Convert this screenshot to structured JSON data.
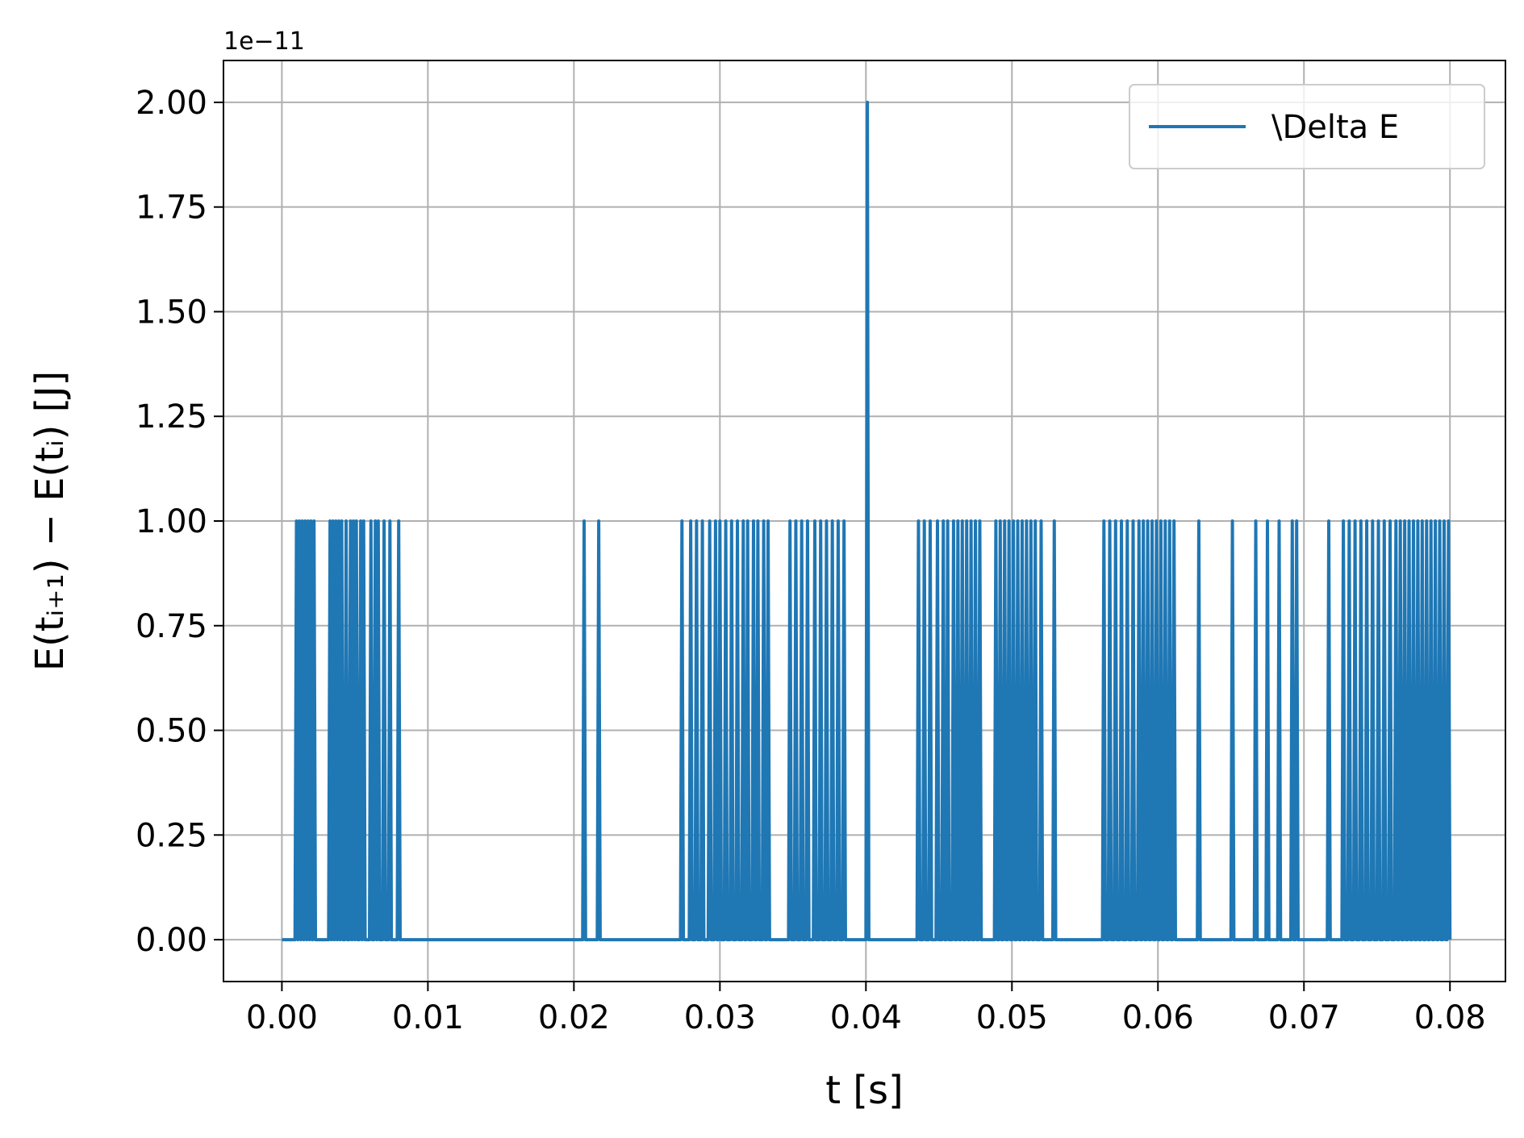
{
  "chart_data": {
    "type": "line",
    "xlabel": "t [s]",
    "ylabel": "E(tᵢ₊₁) − E(tᵢ) [J]",
    "y_offset_label": "1e−11",
    "y_scale": 1e-11,
    "xlim": [
      -0.004,
      0.0838
    ],
    "ylim": [
      -0.1,
      2.1
    ],
    "x_ticks": [
      0.0,
      0.01,
      0.02,
      0.03,
      0.04,
      0.05,
      0.06,
      0.07,
      0.08
    ],
    "x_tick_labels": [
      "0.00",
      "0.01",
      "0.02",
      "0.03",
      "0.04",
      "0.05",
      "0.06",
      "0.07",
      "0.08"
    ],
    "y_ticks": [
      0.0,
      0.25,
      0.5,
      0.75,
      1.0,
      1.25,
      1.5,
      1.75,
      2.0
    ],
    "y_tick_labels": [
      "0.00",
      "0.25",
      "0.50",
      "0.75",
      "1.00",
      "1.25",
      "1.50",
      "1.75",
      "2.00"
    ],
    "grid": true,
    "legend_position": "top-right",
    "series": [
      {
        "name": "\\Delta E",
        "color": "#1f77b4",
        "step": 0.0001,
        "x_range": [
          0.0,
          0.08
        ],
        "spike_times": [
          0.001,
          0.0012,
          0.0014,
          0.0016,
          0.0018,
          0.002,
          0.0022,
          0.0033,
          0.0035,
          0.0037,
          0.0039,
          0.0041,
          0.0044,
          0.0047,
          0.0049,
          0.0051,
          0.0054,
          0.0056,
          0.0061,
          0.0064,
          0.0066,
          0.007,
          0.0074,
          0.008,
          0.0207,
          0.0217,
          0.0274,
          0.028,
          0.0284,
          0.0288,
          0.0293,
          0.0297,
          0.03,
          0.0304,
          0.0308,
          0.0312,
          0.0316,
          0.0319,
          0.0323,
          0.0326,
          0.033,
          0.0333,
          0.0348,
          0.0352,
          0.0356,
          0.036,
          0.0365,
          0.0369,
          0.0373,
          0.0377,
          0.0381,
          0.0385,
          0.0436,
          0.044,
          0.0444,
          0.0449,
          0.0453,
          0.0456,
          0.046,
          0.0463,
          0.0466,
          0.0469,
          0.0472,
          0.0475,
          0.0478,
          0.0489,
          0.0492,
          0.0495,
          0.0498,
          0.0501,
          0.0504,
          0.0507,
          0.051,
          0.0513,
          0.0516,
          0.052,
          0.0529,
          0.0563,
          0.0567,
          0.0571,
          0.0575,
          0.0579,
          0.0583,
          0.0587,
          0.059,
          0.0593,
          0.0596,
          0.0599,
          0.0602,
          0.0605,
          0.0608,
          0.0611,
          0.0628,
          0.0651,
          0.0667,
          0.0675,
          0.0683,
          0.0692,
          0.0695,
          0.0717,
          0.0727,
          0.0731,
          0.0735,
          0.0739,
          0.0743,
          0.0747,
          0.0751,
          0.0755,
          0.0759,
          0.0763,
          0.0766,
          0.0769,
          0.0772,
          0.0775,
          0.0778,
          0.0781,
          0.0784,
          0.0787,
          0.079,
          0.0793,
          0.0796,
          0.0799
        ],
        "spike_value": 1.0,
        "peak": {
          "x": 0.0401,
          "y": 2.0
        },
        "baseline": 0.0
      }
    ]
  }
}
